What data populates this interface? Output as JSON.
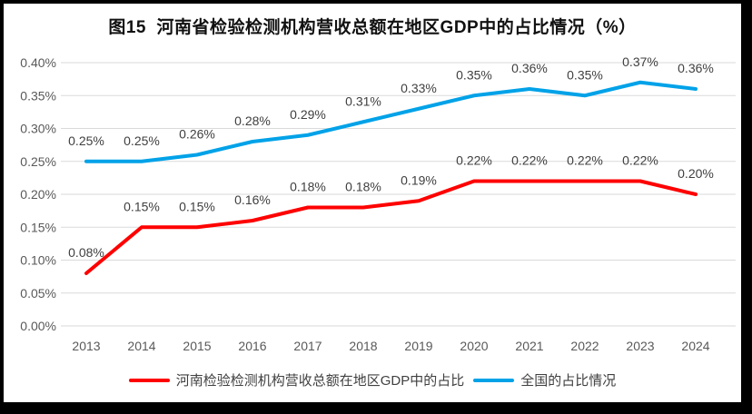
{
  "title": "图15  河南省检验检测机构营收总额在地区GDP中的占比情况（%）",
  "chart_data": {
    "type": "line",
    "categories": [
      "2013",
      "2014",
      "2015",
      "2016",
      "2017",
      "2018",
      "2019",
      "2020",
      "2021",
      "2022",
      "2023",
      "2024"
    ],
    "series": [
      {
        "id": "henan",
        "name": "河南检验检测机构营收总额在地区GDP中的占比",
        "color": "#FF0000",
        "values": [
          0.08,
          0.15,
          0.15,
          0.16,
          0.18,
          0.18,
          0.19,
          0.22,
          0.22,
          0.22,
          0.22,
          0.2
        ],
        "labels": [
          "0.08%",
          "0.15%",
          "0.15%",
          "0.16%",
          "0.18%",
          "0.18%",
          "0.19%",
          "0.22%",
          "0.22%",
          "0.22%",
          "0.22%",
          "0.20%"
        ]
      },
      {
        "id": "national",
        "name": "全国的占比情况",
        "color": "#00A2E8",
        "values": [
          0.25,
          0.25,
          0.26,
          0.28,
          0.29,
          0.31,
          0.33,
          0.35,
          0.36,
          0.35,
          0.37,
          0.36
        ],
        "labels": [
          "0.25%",
          "0.25%",
          "0.26%",
          "0.28%",
          "0.29%",
          "0.31%",
          "0.33%",
          "0.35%",
          "0.36%",
          "0.35%",
          "0.37%",
          "0.36%"
        ]
      }
    ],
    "ylim": [
      0.0,
      0.4
    ],
    "ytick_step": 0.05,
    "ytick_labels": [
      "0.40%",
      "0.35%",
      "0.30%",
      "0.25%",
      "0.20%",
      "0.15%",
      "0.10%",
      "0.05%",
      "0.00%"
    ],
    "xlabel": "",
    "ylabel": "",
    "grid": true,
    "legend_position": "bottom"
  },
  "colors": {
    "grid": "#DADADA",
    "axis_text": "#595959",
    "data_label_text": "#3F3F3F",
    "frame_border": "#000000",
    "background": "#FFFFFF"
  }
}
